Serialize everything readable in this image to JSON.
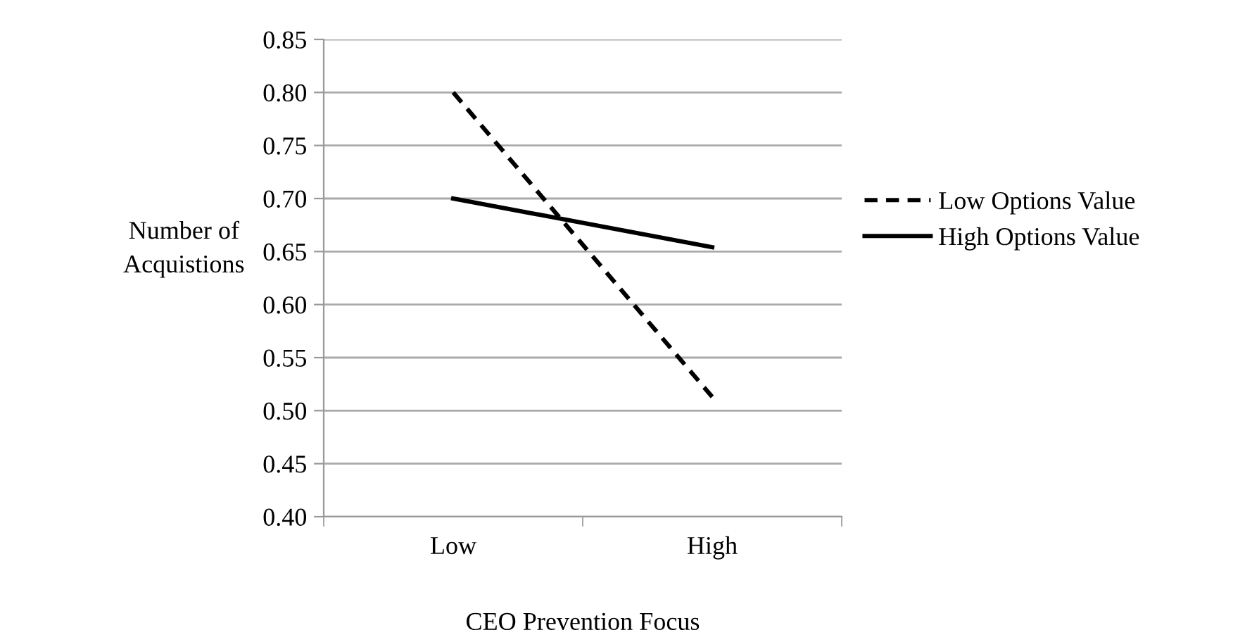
{
  "chart_data": {
    "type": "line",
    "xlabel": "CEO Prevention Focus",
    "ylabel": "Number of\nAcquistions",
    "categories": [
      "Low",
      "High"
    ],
    "series": [
      {
        "name": "Low Options Value",
        "color": "#000000",
        "line_style": "dashed",
        "values": [
          0.8,
          0.513
        ]
      },
      {
        "name": "High Options Value",
        "color": "#000000",
        "line_style": "solid",
        "values": [
          0.7,
          0.654
        ]
      }
    ],
    "ylim": [
      0.4,
      0.85
    ],
    "yticks": [
      {
        "value": 0.4,
        "label": "0.40"
      },
      {
        "value": 0.45,
        "label": "0.45"
      },
      {
        "value": 0.5,
        "label": "0.50"
      },
      {
        "value": 0.55,
        "label": "0.55"
      },
      {
        "value": 0.6,
        "label": "0.60"
      },
      {
        "value": 0.65,
        "label": "0.65"
      },
      {
        "value": 0.7,
        "label": "0.70"
      },
      {
        "value": 0.75,
        "label": "0.75"
      },
      {
        "value": 0.8,
        "label": "0.80"
      },
      {
        "value": 0.85,
        "label": "0.85"
      }
    ],
    "grid": "y",
    "legend": "right",
    "marker": "none"
  }
}
